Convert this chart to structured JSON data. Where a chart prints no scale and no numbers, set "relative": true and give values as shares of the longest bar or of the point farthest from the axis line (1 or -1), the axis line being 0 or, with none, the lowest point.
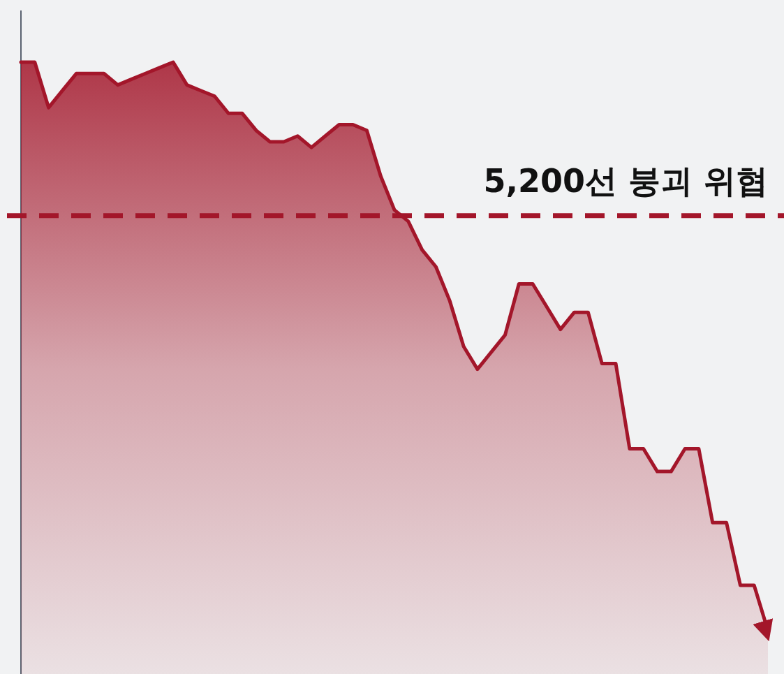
{
  "chart_data": {
    "type": "area",
    "relative": true,
    "categories": [
      null,
      null,
      null,
      null,
      null,
      null,
      null,
      null,
      null,
      null,
      null,
      null,
      null,
      null,
      null,
      null,
      null,
      null,
      null,
      null,
      null,
      null,
      null,
      null,
      null,
      null,
      null,
      null,
      null,
      null,
      null,
      null,
      null,
      null,
      null,
      null,
      null,
      null,
      null,
      null,
      null,
      null,
      null,
      null,
      null,
      null,
      null,
      null,
      null,
      null,
      null,
      null,
      null,
      null,
      null
    ],
    "series": [
      {
        "color": "#a3162a",
        "values": [
          1.0,
          1.0,
          0.92,
          0.95,
          0.98,
          0.98,
          0.98,
          0.96,
          0.97,
          0.98,
          0.99,
          1.0,
          0.96,
          0.95,
          0.94,
          0.91,
          0.91,
          0.88,
          0.86,
          0.86,
          0.87,
          0.85,
          0.87,
          0.89,
          0.89,
          0.88,
          0.8,
          0.74,
          0.72,
          0.67,
          0.64,
          0.58,
          0.5,
          0.46,
          0.49,
          0.52,
          0.61,
          0.61,
          0.57,
          0.53,
          0.56,
          0.56,
          0.47,
          0.47,
          0.32,
          0.32,
          0.28,
          0.28,
          0.32,
          0.32,
          0.19,
          0.19,
          0.08,
          0.08,
          0.0
        ]
      }
    ],
    "ref_lines": [
      {
        "axis": "y",
        "value": 0.73,
        "label": "5,200선 붕괴 위협",
        "color": "#a3162a",
        "line_style": "dashed"
      }
    ]
  }
}
